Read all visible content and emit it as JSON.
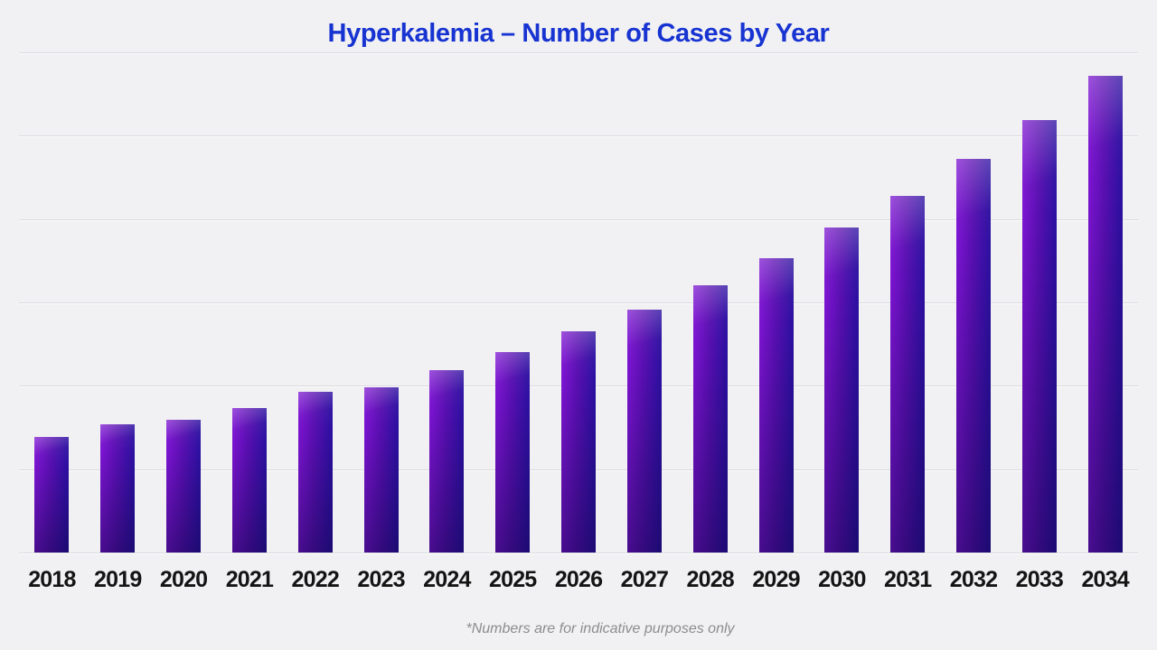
{
  "title": "Hyperkalemia – Number of Cases by Year",
  "footnote": "*Numbers are for indicative purposes only",
  "colors": {
    "background": "#f1f1f3",
    "title": "#1733d1",
    "bar_gradient_left": "#7d14d2",
    "bar_gradient_mid": "#5a0fb2",
    "bar_gradient_right": "#2a10a0",
    "gridline": "#d9dade",
    "axis_label": "#141414",
    "footnote": "#8c8c8e"
  },
  "chart_data": {
    "type": "bar",
    "title": "Hyperkalemia – Number of Cases by Year",
    "categories": [
      "2018",
      "2019",
      "2020",
      "2021",
      "2022",
      "2023",
      "2024",
      "2025",
      "2026",
      "2027",
      "2028",
      "2029",
      "2030",
      "2031",
      "2032",
      "2033",
      "2034"
    ],
    "values": [
      1.39,
      1.54,
      1.59,
      1.73,
      1.93,
      1.98,
      2.19,
      2.4,
      2.65,
      2.91,
      3.21,
      3.53,
      3.9,
      4.28,
      4.72,
      5.19,
      5.72
    ],
    "value_scale_note": "y-axis shows no tick labels; values estimated in horizontal-gridline units (baseline = 0, top gridline = 6)",
    "xlabel": "",
    "ylabel": "",
    "ylim": [
      0,
      6
    ],
    "gridline_count": 7,
    "grid": true,
    "legend": false,
    "annotation": "*Numbers are for indicative purposes only",
    "bar_style": "rectangular bars with purple-to-navy gradient"
  }
}
